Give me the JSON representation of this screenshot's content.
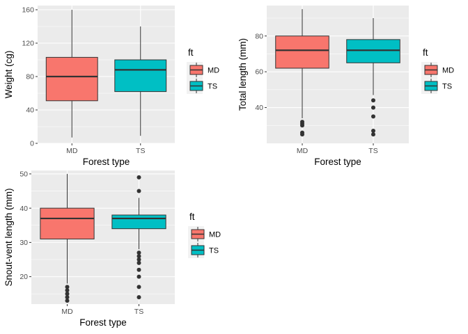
{
  "figure": {
    "background": "#ffffff",
    "panel_background": "#ebebeb",
    "gridline_color": "#ffffff",
    "outlier_color": "#333333"
  },
  "chart_data": [
    {
      "type": "boxplot",
      "xlabel": "Forest type",
      "ylabel": "Weight (cg)",
      "ylim": [
        0,
        165
      ],
      "yticks": [
        0,
        40,
        80,
        120,
        160
      ],
      "grid": true,
      "legend": {
        "title": "ft",
        "position": "right",
        "entries": [
          "MD",
          "TS"
        ]
      },
      "categories": [
        "MD",
        "TS"
      ],
      "colors": [
        "#f8766d",
        "#00bfc4"
      ],
      "boxes": [
        {
          "name": "MD",
          "whisker_low": 7,
          "q1": 51,
          "median": 80,
          "q3": 103,
          "whisker_high": 160,
          "outliers": []
        },
        {
          "name": "TS",
          "whisker_low": 9,
          "q1": 62,
          "median": 88,
          "q3": 100,
          "whisker_high": 140,
          "outliers": []
        }
      ]
    },
    {
      "type": "boxplot",
      "xlabel": "Forest type",
      "ylabel": "Total length (mm)",
      "ylim": [
        20,
        97
      ],
      "yticks": [
        40,
        60,
        80
      ],
      "grid": true,
      "legend": {
        "title": "ft",
        "position": "right",
        "entries": [
          "MD",
          "TS"
        ]
      },
      "categories": [
        "MD",
        "TS"
      ],
      "colors": [
        "#f8766d",
        "#00bfc4"
      ],
      "boxes": [
        {
          "name": "MD",
          "whisker_low": 34,
          "q1": 62,
          "median": 72,
          "q3": 80,
          "whisker_high": 95,
          "outliers": [
            32,
            31,
            30,
            26,
            25
          ]
        },
        {
          "name": "TS",
          "whisker_low": 47,
          "q1": 65,
          "median": 72,
          "q3": 78,
          "whisker_high": 90,
          "outliers": [
            44,
            40,
            35,
            27,
            25
          ]
        }
      ]
    },
    {
      "type": "boxplot",
      "xlabel": "Forest type",
      "ylabel": "Snout-vent length (mm)",
      "ylim": [
        12,
        51
      ],
      "yticks": [
        20,
        30,
        40,
        50
      ],
      "grid": true,
      "legend": {
        "title": "ft",
        "position": "right",
        "entries": [
          "MD",
          "TS"
        ]
      },
      "categories": [
        "MD",
        "TS"
      ],
      "colors": [
        "#f8766d",
        "#00bfc4"
      ],
      "boxes": [
        {
          "name": "MD",
          "whisker_low": 18,
          "q1": 31,
          "median": 37,
          "q3": 40,
          "whisker_high": 50,
          "outliers": [
            17,
            16,
            15,
            14,
            13
          ]
        },
        {
          "name": "TS",
          "whisker_low": 28,
          "q1": 34,
          "median": 37,
          "q3": 38,
          "whisker_high": 43,
          "outliers": [
            49,
            45,
            27,
            26,
            25,
            24,
            22,
            20,
            17,
            14
          ]
        }
      ]
    }
  ]
}
